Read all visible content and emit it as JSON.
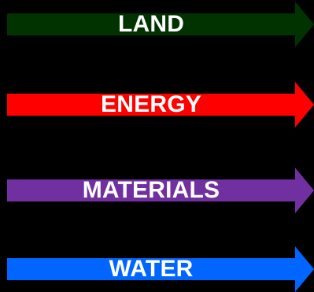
{
  "arrows": [
    {
      "label": "LAND",
      "color": "#003300"
    },
    {
      "label": "ENERGY",
      "color": "#ff0000"
    },
    {
      "label": "MATERIALS",
      "color": "#7030a0"
    },
    {
      "label": "WATER",
      "color": "#0066ff"
    }
  ],
  "background": "#000000"
}
